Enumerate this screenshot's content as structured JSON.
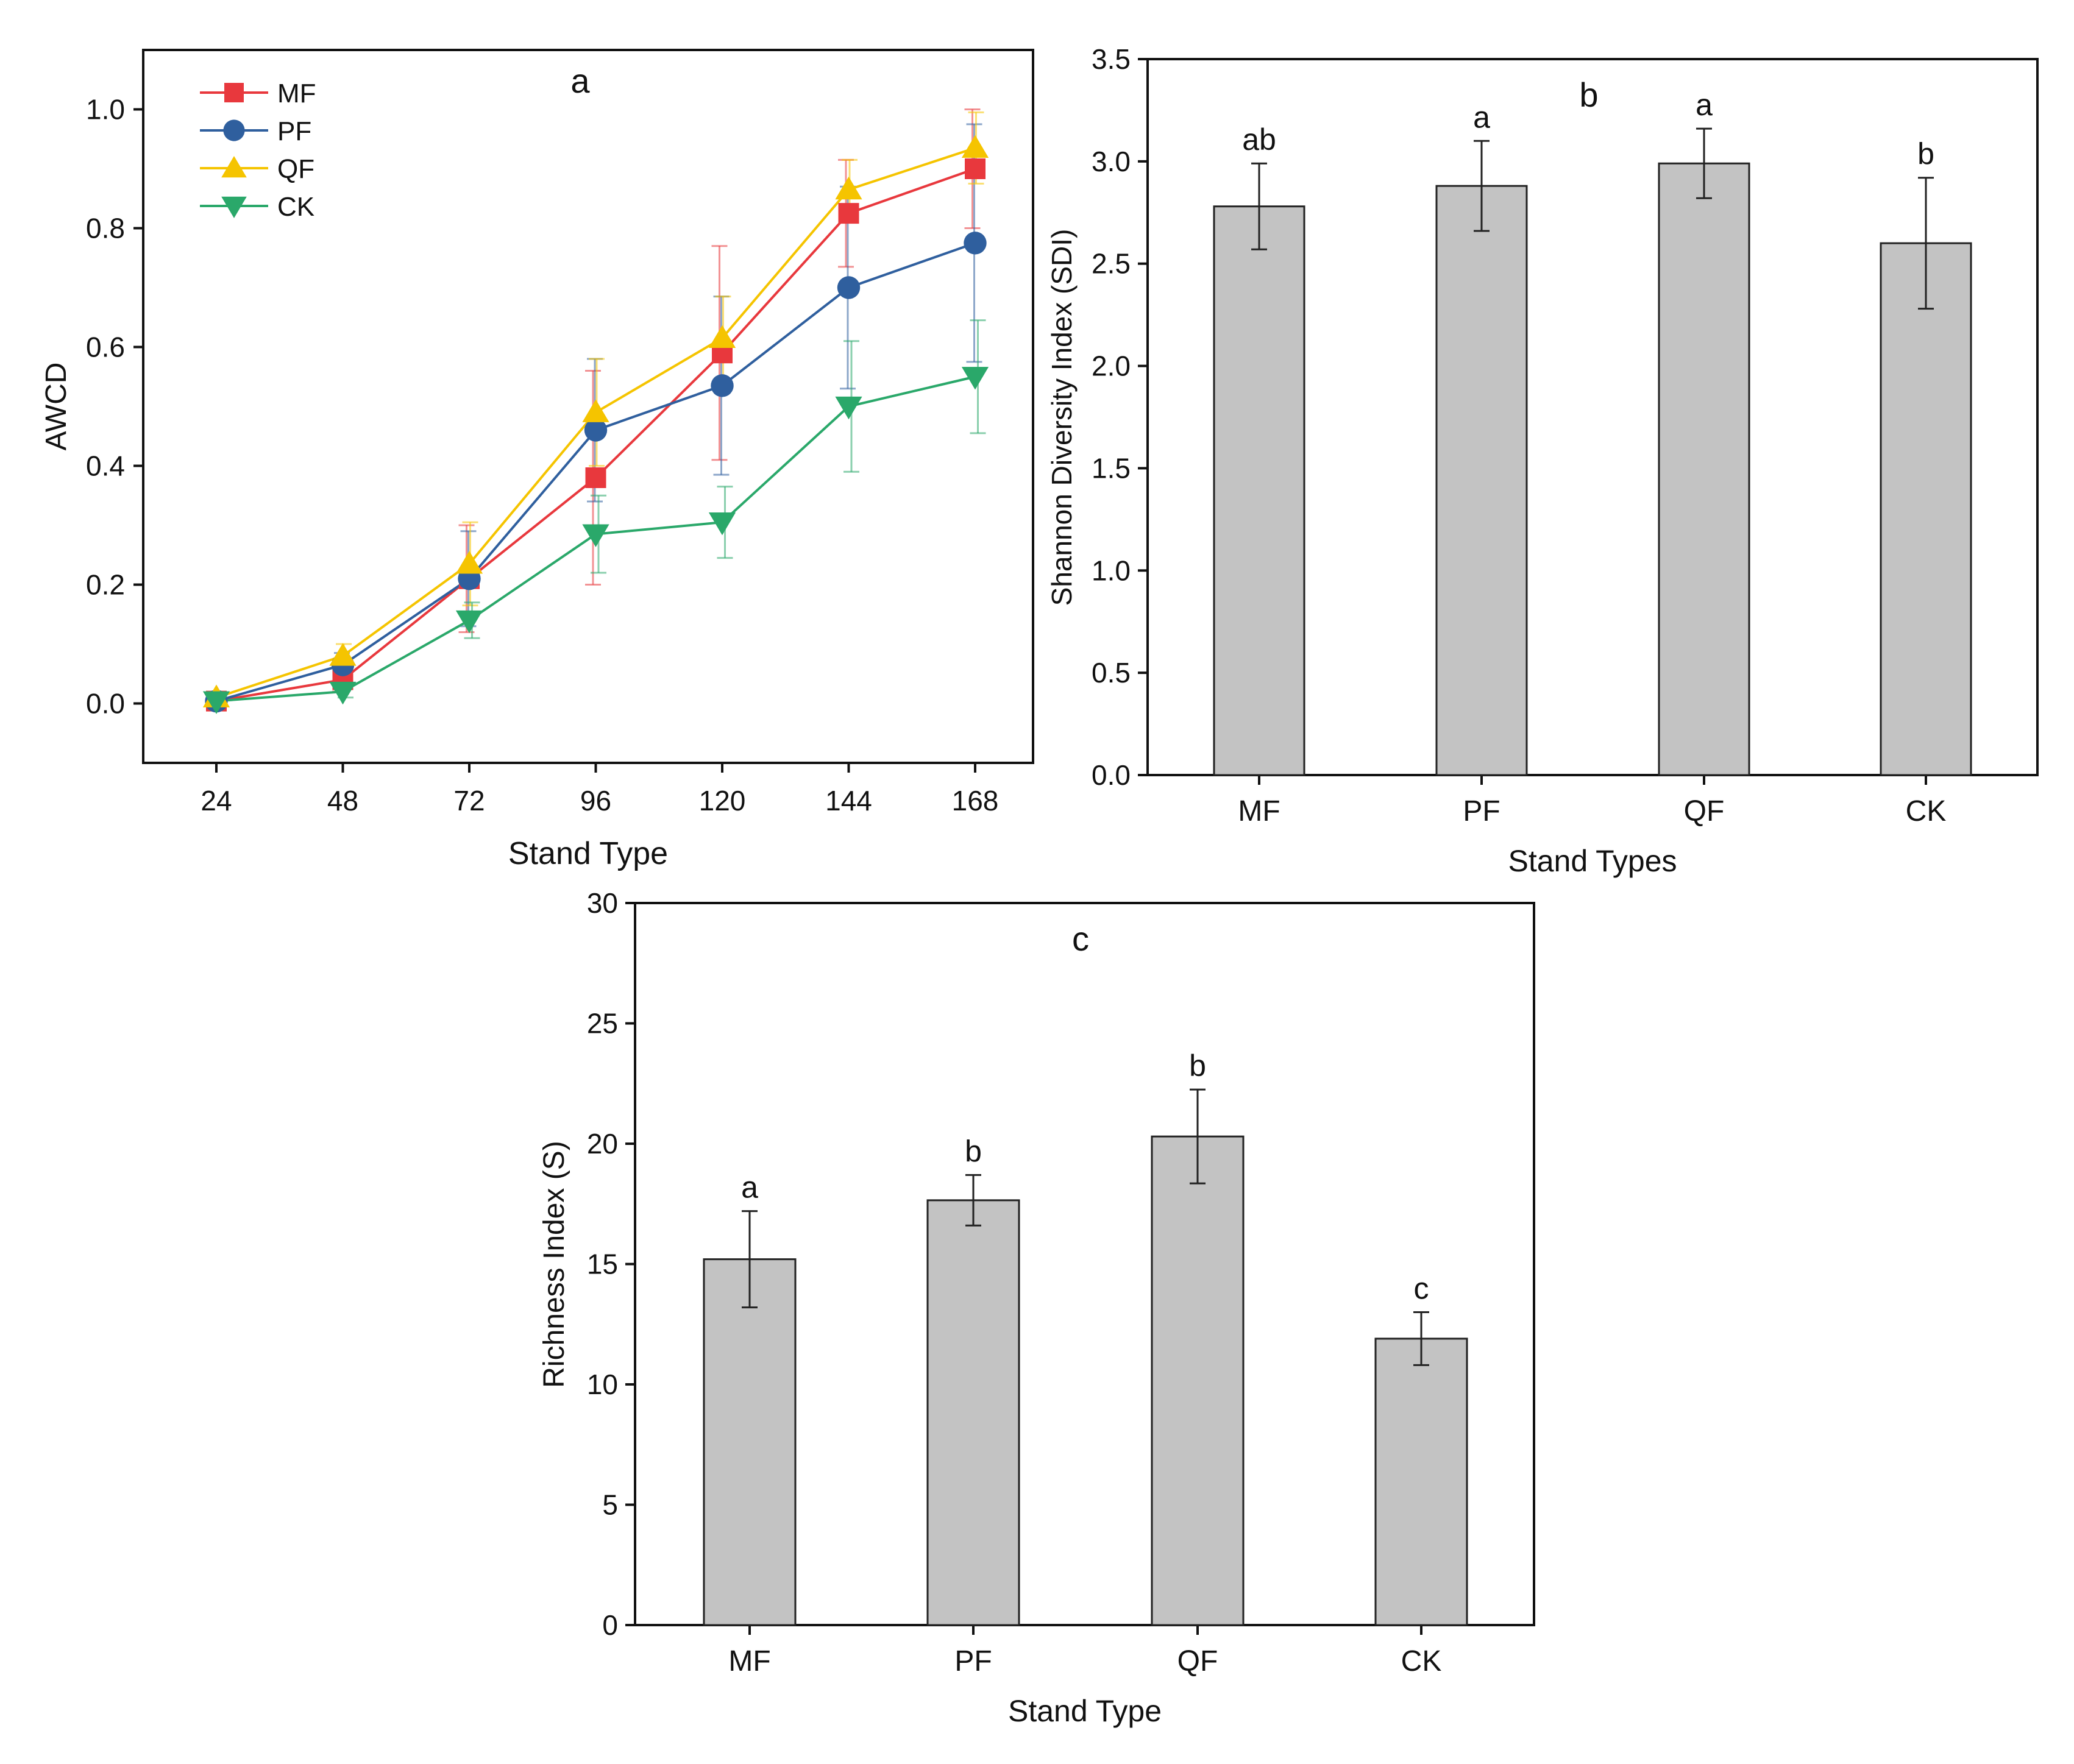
{
  "chart_data": [
    {
      "panel": "a",
      "type": "line",
      "title": "a",
      "xlabel": "Stand Type",
      "ylabel": "AWCD",
      "categories": [
        "24",
        "48",
        "72",
        "96",
        "120",
        "144",
        "168"
      ],
      "ylim": [
        -0.1,
        1.1
      ],
      "yticks": [
        "0.0",
        "0.2",
        "0.4",
        "0.6",
        "0.8",
        "1.0"
      ],
      "legend_position": "top-left",
      "series": [
        {
          "name": "MF",
          "marker": "square",
          "color": "#e8383d",
          "values": [
            0.004,
            0.04,
            0.21,
            0.38,
            0.59,
            0.825,
            0.9
          ],
          "errors": [
            0.004,
            0.02,
            0.09,
            0.18,
            0.18,
            0.09,
            0.1
          ]
        },
        {
          "name": "PF",
          "marker": "circle",
          "color": "#2f5f9e",
          "values": [
            0.004,
            0.065,
            0.21,
            0.46,
            0.535,
            0.7,
            0.775
          ],
          "errors": [
            0.004,
            0.02,
            0.08,
            0.12,
            0.15,
            0.17,
            0.2
          ]
        },
        {
          "name": "QF",
          "marker": "triangle-up",
          "color": "#f5c400",
          "values": [
            0.01,
            0.08,
            0.235,
            0.49,
            0.615,
            0.865,
            0.935
          ],
          "errors": [
            0.005,
            0.02,
            0.07,
            0.09,
            0.07,
            0.05,
            0.06
          ]
        },
        {
          "name": "CK",
          "marker": "triangle-down",
          "color": "#2aa86a",
          "values": [
            0.004,
            0.02,
            0.14,
            0.285,
            0.305,
            0.5,
            0.55
          ],
          "errors": [
            0.004,
            0.01,
            0.03,
            0.065,
            0.06,
            0.11,
            0.095
          ]
        }
      ]
    },
    {
      "panel": "b",
      "type": "bar",
      "title": "b",
      "xlabel": "Stand Types",
      "ylabel": "Shannon Diversity Index (SDI)",
      "categories": [
        "MF",
        "PF",
        "QF",
        "CK"
      ],
      "values": [
        2.78,
        2.88,
        2.99,
        2.6
      ],
      "errors": [
        0.21,
        0.22,
        0.17,
        0.32
      ],
      "letters": [
        "ab",
        "a",
        "a",
        "b"
      ],
      "ylim": [
        0,
        3.5
      ],
      "yticks": [
        "0.0",
        "0.5",
        "1.0",
        "1.5",
        "2.0",
        "2.5",
        "3.0",
        "3.5"
      ]
    },
    {
      "panel": "c",
      "type": "bar",
      "title": "c",
      "xlabel": "Stand Type",
      "ylabel": "Richness Index (S)",
      "categories": [
        "MF",
        "PF",
        "QF",
        "CK"
      ],
      "values": [
        15.2,
        17.65,
        20.3,
        11.9
      ],
      "errors": [
        2.0,
        1.05,
        1.95,
        1.1
      ],
      "letters": [
        "a",
        "b",
        "b",
        "c"
      ],
      "ylim": [
        0,
        30
      ],
      "yticks": [
        "0",
        "5",
        "10",
        "15",
        "20",
        "25",
        "30"
      ]
    }
  ],
  "colors": {
    "bar_fill": "#c3c3c3",
    "axis": "#111111"
  }
}
